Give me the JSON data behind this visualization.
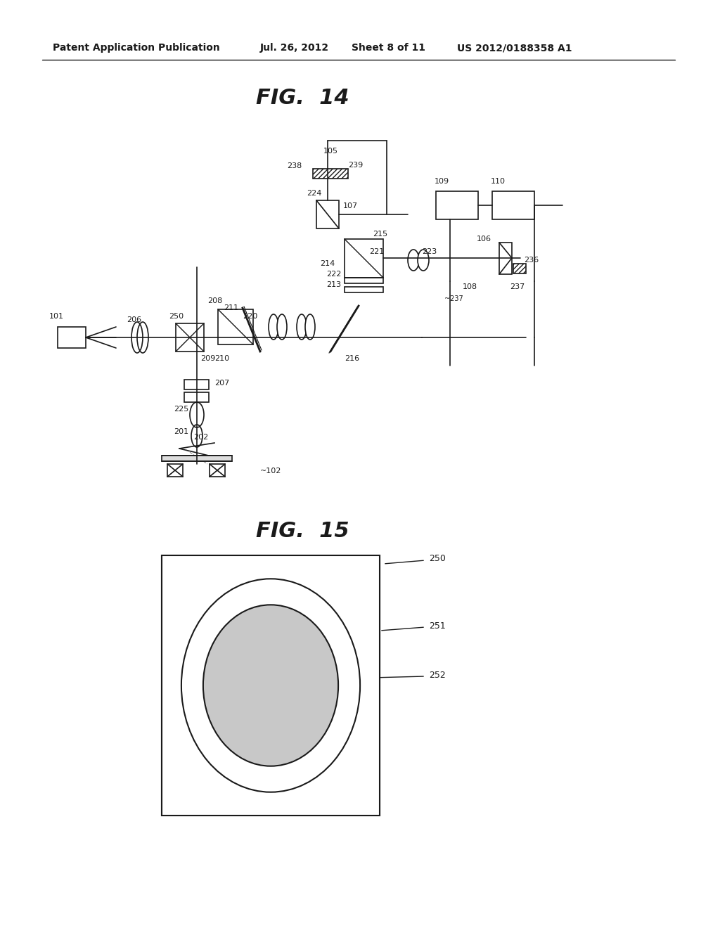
{
  "background_color": "#ffffff",
  "header_text": "Patent Application Publication",
  "header_date": "Jul. 26, 2012",
  "header_sheet": "Sheet 8 of 11",
  "header_patent": "US 2012/0188358 A1",
  "fig14_title": "FIG.  14",
  "fig15_title": "FIG.  15",
  "text_color": "#1a1a1a",
  "line_color": "#1a1a1a",
  "hatch_color": "#555555",
  "light_gray": "#cccccc",
  "medium_gray": "#aaaaaa"
}
